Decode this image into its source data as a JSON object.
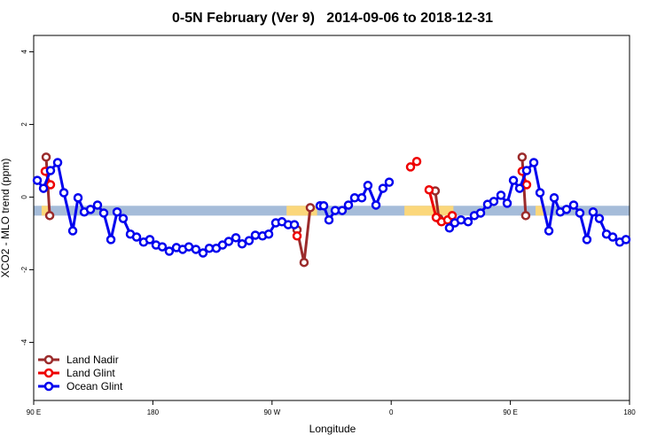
{
  "chart_data": {
    "type": "line",
    "title": "0-5N February (Ver 9)   2014-09-06 to 2018-12-31",
    "x_label": "Longitude",
    "y_label": "XCO2 - MLO trend (ppm)",
    "xlim": [
      90,
      540
    ],
    "ylim": [
      -5.6,
      4.45
    ],
    "xticks": [
      {
        "value": 90,
        "label": "90 E"
      },
      {
        "value": 180,
        "label": "180"
      },
      {
        "value": 270,
        "label": "90 W"
      },
      {
        "value": 360,
        "label": "0"
      },
      {
        "value": 450,
        "label": "90 E"
      },
      {
        "value": 540,
        "label": "180"
      }
    ],
    "yticks": [
      -4,
      -2,
      0,
      2,
      4
    ],
    "legend_position": "bottom-left",
    "band": {
      "ylim": [
        -0.51,
        -0.24
      ],
      "color": "#a5bcd9",
      "land_color": "#fbd77b",
      "land_segments": [
        [
          96,
          102
        ],
        [
          281,
          304
        ],
        [
          370,
          407
        ],
        [
          469,
          476
        ]
      ]
    },
    "series": [
      {
        "name": "Land Nadir",
        "color": "#9b2b2b",
        "x": [
          99.4,
          102.1,
          null,
          288.9,
          294.2,
          298.9,
          null,
          393.3,
          396,
          null,
          458.9,
          461.6
        ],
        "values": [
          1.1,
          -0.51,
          null,
          -0.9,
          -1.8,
          -0.29,
          null,
          0.17,
          -0.59,
          null,
          1.1,
          -0.51
        ]
      },
      {
        "name": "Land Glint",
        "color": "#ee0000",
        "x": [
          98.7,
          102.7,
          null,
          288.9,
          null,
          374.6,
          379.3,
          null,
          388.6,
          394,
          398,
          402.7,
          406.1,
          null,
          458.9,
          462.3
        ],
        "values": [
          0.71,
          0.34,
          null,
          -1.07,
          null,
          0.83,
          0.98,
          null,
          0.2,
          -0.56,
          -0.68,
          -0.63,
          -0.51,
          null,
          0.71,
          0.34
        ]
      },
      {
        "name": "Ocean Glint",
        "color": "#0000ee",
        "x": [
          92.7,
          97.4,
          102.7,
          108.1,
          112.8,
          119.5,
          123.5,
          128.2,
          132.9,
          138.2,
          142.9,
          148.3,
          153,
          157.6,
          163,
          167.7,
          173,
          177.7,
          182.4,
          187.1,
          192.4,
          197.8,
          202.5,
          207.2,
          212.5,
          217.9,
          222.6,
          227.9,
          232.6,
          237.3,
          242.7,
          247.4,
          252.7,
          257.4,
          262.8,
          267.5,
          272.8,
          277.5,
          282.2,
          286.9,
          null,
          306.3,
          309,
          313,
          317.7,
          323,
          327.7,
          332.4,
          337.8,
          342.4,
          348.5,
          353.8,
          358.5,
          null,
          404,
          408,
          412.7,
          418.1,
          422.8,
          427.5,
          432.8,
          437.5,
          442.9,
          447.6,
          452.3,
          457,
          462.3,
          467.7,
          472.4,
          479.1,
          483.1,
          487.7,
          492.4,
          497.8,
          502.5,
          507.8,
          512.5,
          517.2,
          522.6,
          527.3,
          532.6,
          537.3
        ],
        "values": [
          0.46,
          0.24,
          0.73,
          0.95,
          0.12,
          -0.93,
          -0.02,
          -0.41,
          -0.34,
          -0.22,
          -0.44,
          -1.17,
          -0.41,
          -0.59,
          -1.02,
          -1.1,
          -1.24,
          -1.17,
          -1.32,
          -1.37,
          -1.49,
          -1.39,
          -1.44,
          -1.37,
          -1.44,
          -1.54,
          -1.41,
          -1.41,
          -1.32,
          -1.22,
          -1.12,
          -1.29,
          -1.2,
          -1.05,
          -1.07,
          -1.02,
          -0.71,
          -0.68,
          -0.76,
          -0.76,
          null,
          -0.24,
          -0.24,
          -0.63,
          -0.37,
          -0.37,
          -0.22,
          -0.02,
          -0.02,
          0.32,
          -0.22,
          0.24,
          0.41,
          null,
          -0.85,
          -0.71,
          -0.63,
          -0.68,
          -0.51,
          -0.44,
          -0.2,
          -0.12,
          0.05,
          -0.17,
          0.46,
          0.24,
          0.73,
          0.95,
          0.12,
          -0.93,
          -0.02,
          -0.41,
          -0.34,
          -0.22,
          -0.44,
          -1.17,
          -0.41,
          -0.59,
          -1.02,
          -1.1,
          -1.24,
          -1.17
        ]
      }
    ]
  }
}
